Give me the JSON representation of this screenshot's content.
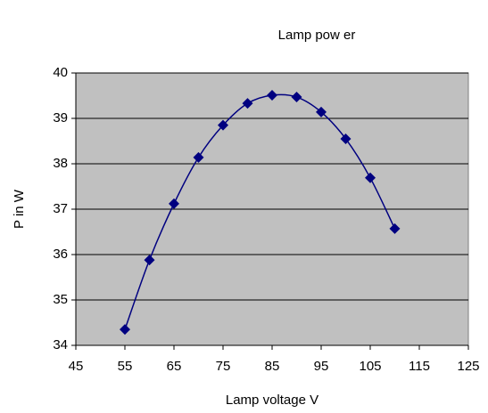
{
  "chart_data": {
    "type": "line",
    "title": "Lamp pow er",
    "x_label": "Lamp voltage V",
    "y_label": "P in W",
    "x": [
      55,
      60,
      65,
      70,
      75,
      80,
      85,
      90,
      95,
      100,
      105,
      110
    ],
    "values": [
      34.35,
      35.88,
      37.12,
      38.14,
      38.85,
      39.33,
      39.51,
      39.47,
      39.14,
      38.55,
      37.69,
      36.57
    ],
    "color": "#000080",
    "plot_background": "#c0c0c0",
    "grid": true,
    "smooth": true,
    "marker": "diamond",
    "xlim": [
      45,
      125
    ],
    "xticks": [
      45,
      55,
      65,
      75,
      85,
      95,
      105,
      115,
      125
    ],
    "ylim": [
      34,
      40
    ],
    "yticks": [
      34,
      35,
      36,
      37,
      38,
      39,
      40
    ]
  }
}
